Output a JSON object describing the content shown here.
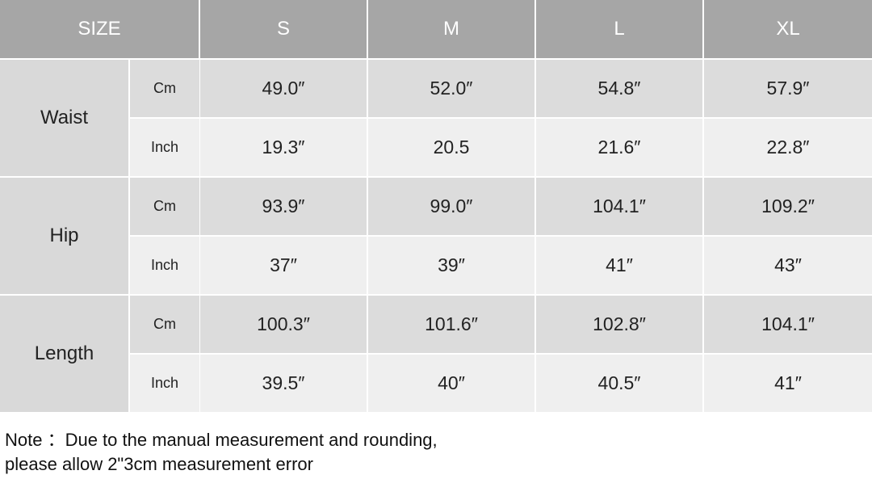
{
  "table": {
    "header": [
      "SIZE",
      "S",
      "M",
      "L",
      "XL"
    ],
    "groups": [
      {
        "label": "Waist",
        "rows": [
          {
            "unit": "Cm",
            "values": [
              "49.0″",
              "52.0″",
              "54.8″",
              "57.9″"
            ]
          },
          {
            "unit": "Inch",
            "values": [
              "19.3″",
              "20.5",
              "21.6″",
              "22.8″"
            ]
          }
        ]
      },
      {
        "label": "Hip",
        "rows": [
          {
            "unit": "Cm",
            "values": [
              "93.9″",
              "99.0″",
              "104.1″",
              "109.2″"
            ]
          },
          {
            "unit": "Inch",
            "values": [
              "37″",
              "39″",
              "41″",
              "43″"
            ]
          }
        ]
      },
      {
        "label": "Length",
        "rows": [
          {
            "unit": "Cm",
            "values": [
              "100.3″",
              "101.6″",
              "102.8″",
              "104.1″"
            ]
          },
          {
            "unit": "Inch",
            "values": [
              "39.5″",
              "40″",
              "40.5″",
              "41″"
            ]
          }
        ]
      }
    ]
  },
  "note": [
    "Note ：Due to the manual measurement and rounding,",
    "please allow 2\"3cm measurement error"
  ]
}
